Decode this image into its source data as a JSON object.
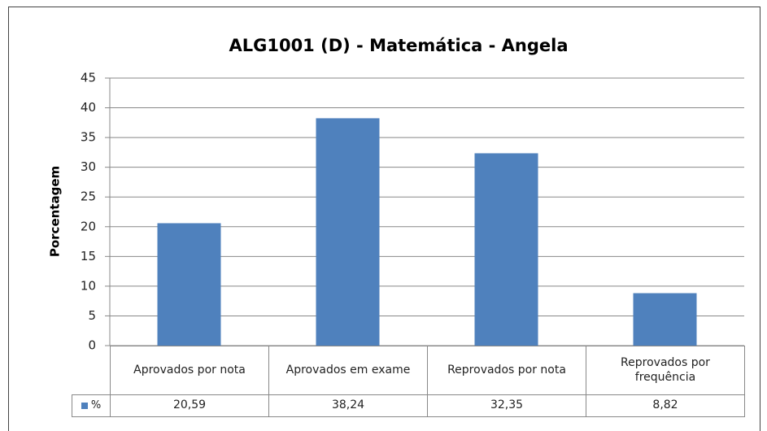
{
  "chart_data": {
    "type": "bar",
    "title": "ALG1001 (D) - Matemática - Angela",
    "y_label": "Porcentagem",
    "categories": [
      "Aprovados por nota",
      "Aprovados em exame",
      "Reprovados por nota",
      "Reprovados por frequência"
    ],
    "series": [
      {
        "name": "%",
        "color": "#4f81bd",
        "values": [
          20.59,
          38.24,
          32.35,
          8.82
        ],
        "value_labels": [
          "20,59",
          "38,24",
          "32,35",
          "8,82"
        ]
      }
    ],
    "ylim": [
      0,
      45
    ],
    "yticks": [
      0,
      5,
      10,
      15,
      20,
      25,
      30,
      35,
      40,
      45
    ],
    "grid": true
  }
}
